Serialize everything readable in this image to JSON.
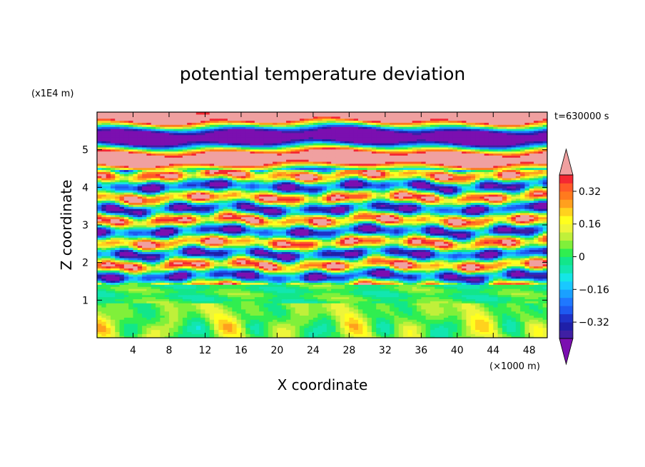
{
  "chart_data": {
    "type": "heatmap",
    "title": "potential temperature deviation",
    "xlabel": "X coordinate",
    "ylabel": "Z coordinate",
    "x_unit": "(×1000 m)",
    "y_unit": "(x1E4 m)",
    "time_label": "t=630000 s",
    "xlim": [
      0,
      50
    ],
    "ylim": [
      0,
      6
    ],
    "x_ticks": [
      4,
      8,
      12,
      16,
      20,
      24,
      28,
      32,
      36,
      40,
      44,
      48
    ],
    "y_ticks": [
      1,
      2,
      3,
      4,
      5
    ],
    "colorbar": {
      "levels": [
        -0.4,
        -0.36,
        -0.32,
        -0.28,
        -0.24,
        -0.2,
        -0.16,
        -0.12,
        -0.08,
        -0.04,
        0,
        0.04,
        0.08,
        0.12,
        0.16,
        0.2,
        0.24,
        0.28,
        0.32,
        0.36,
        0.4
      ],
      "colors": [
        "#7b0fb0",
        "#3f1fa3",
        "#1f1fa8",
        "#1f32c8",
        "#1e5af0",
        "#1f78ff",
        "#1aa0ff",
        "#19c8ff",
        "#15e6e6",
        "#12e6b0",
        "#12e68a",
        "#30ee50",
        "#80f03a",
        "#c0f03a",
        "#eef53a",
        "#ffff1e",
        "#ffd21e",
        "#ffa01e",
        "#ff7a1e",
        "#ff5a28",
        "#f42832",
        "#f0a0a0"
      ],
      "tick_values": [
        -0.32,
        -0.16,
        0,
        0.16,
        0.32
      ],
      "tick_labels": [
        "−0.32",
        "−0.16",
        "0",
        "0.16",
        "0.32"
      ]
    },
    "layers": [
      {
        "z_range": [
          0,
          0.9
        ],
        "dominant": "weak positive (0.04 – 0.12)"
      },
      {
        "z_range": [
          0.9,
          1.4
        ],
        "dominant": "near zero"
      },
      {
        "z_range": [
          1.4,
          4.5
        ],
        "dominant": "alternating bands ±0.4"
      },
      {
        "z_range": [
          4.5,
          6
        ],
        "dominant": "strong alternating bands (>0.4 and <−0.4)"
      }
    ]
  }
}
